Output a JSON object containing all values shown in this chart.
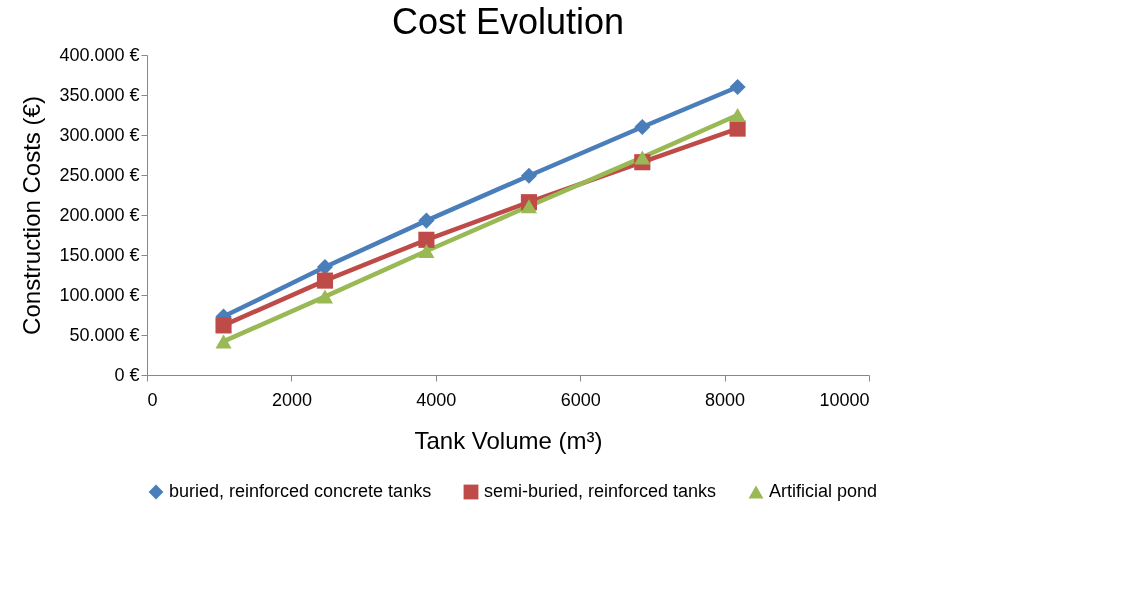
{
  "chart_data": {
    "type": "line",
    "title": "Cost Evolution",
    "xlabel": "Tank Volume (m³)",
    "ylabel": "Construction Costs (€)",
    "x": [
      1060,
      2465,
      3870,
      5290,
      6860,
      8180
    ],
    "series": [
      {
        "name": "buried, reinforced concrete tanks",
        "color": "#4a7ebb",
        "marker": "diamond",
        "values": [
          73000,
          135000,
          193000,
          249000,
          310000,
          360000
        ]
      },
      {
        "name": "semi-buried, reinforced tanks",
        "color": "#be4b48",
        "marker": "square",
        "values": [
          62000,
          118000,
          169000,
          216000,
          266000,
          308000
        ]
      },
      {
        "name": "Artificial pond",
        "color": "#98b954",
        "marker": "triangle",
        "values": [
          42000,
          98000,
          155000,
          211000,
          272000,
          325000
        ]
      }
    ],
    "xlim": [
      0,
      10000
    ],
    "xticks": [
      0,
      2000,
      4000,
      6000,
      8000,
      10000
    ],
    "ylim": [
      0,
      400000
    ],
    "yticks": [
      {
        "value": 0,
        "label": "0 €"
      },
      {
        "value": 50000,
        "label": "50.000 €"
      },
      {
        "value": 100000,
        "label": "100.000 €"
      },
      {
        "value": 150000,
        "label": "150.000 €"
      },
      {
        "value": 200000,
        "label": "200.000 €"
      },
      {
        "value": 250000,
        "label": "250.000 €"
      },
      {
        "value": 300000,
        "label": "300.000 €"
      },
      {
        "value": 350000,
        "label": "350.000 €"
      },
      {
        "value": 400000,
        "label": "400.000 €"
      }
    ],
    "grid": false,
    "legend": "bottom",
    "line_style": "solid"
  }
}
